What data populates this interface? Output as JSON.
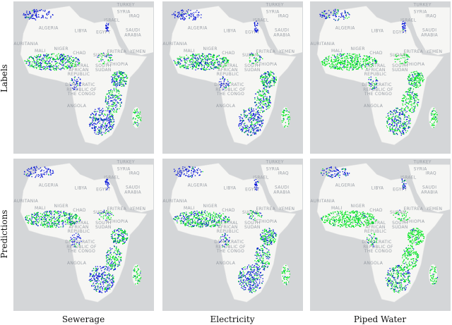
{
  "rows": [
    "Labels",
    "Predictions"
  ],
  "columns": [
    "Sewerage",
    "Electricity",
    "Piped Water"
  ],
  "map_labels": [
    "TURKEY",
    "SYRIA",
    "IRAQ",
    "ISRAEL",
    "LIBYA",
    "ALGERIA",
    "EGYPT",
    "SAUDI",
    "ARABIA",
    "MAURITANIA",
    "MALI",
    "NIGER",
    "CHAD",
    "SUDAN",
    "ERITREA",
    "YEMEN",
    "ETHIOPIA",
    "CENTRAL",
    "AFRICAN",
    "REPUBLIC",
    "SOUTH",
    "SUDAN",
    "DEMOCRATIC",
    "REPUBLIC OF",
    "THE CONGO",
    "ANGOLA"
  ],
  "colors": {
    "ocean": "#d4d6d8",
    "land": "#f6f6f4",
    "positive": "#00e61e",
    "negative": "#0010d8"
  },
  "green_share": [
    [
      0.35,
      0.4,
      0.65
    ],
    [
      0.4,
      0.42,
      0.72
    ]
  ]
}
